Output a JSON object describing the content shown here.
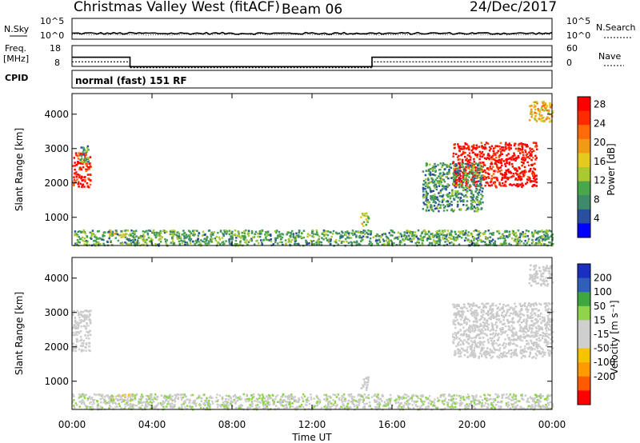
{
  "header": {
    "station": "Christmas Valley West (fitACF)",
    "beam": "Beam 06",
    "date": "24/Dec/2017"
  },
  "nsky_panel": {
    "left_label": "N.Sky",
    "right_label": "N.Search",
    "left_ticks": [
      "10^5",
      "10^0"
    ],
    "right_ticks": [
      "10^5",
      "10^0"
    ]
  },
  "freq_panel": {
    "left_label_1": "Freq.",
    "left_label_2": "[MHz]",
    "right_label": "Nave",
    "left_ticks": [
      "18",
      "8"
    ],
    "right_ticks": [
      "60",
      "0"
    ],
    "freq_steps": [
      [
        0,
        12.4
      ],
      [
        2.9,
        7.9
      ],
      [
        15,
        12.4
      ],
      [
        24,
        12.4
      ]
    ],
    "nave_steps": [
      [
        0,
        10.2
      ],
      [
        2.9,
        7.4
      ],
      [
        15,
        10.2
      ],
      [
        24,
        10.2
      ]
    ]
  },
  "cpid_panel": {
    "label": "CPID",
    "text": "normal (fast) 151 RF"
  },
  "colors": {
    "power_scale": [
      "#0000ff",
      "#2a4fa0",
      "#3f8a6a",
      "#4aa64a",
      "#aac832",
      "#e6c91e",
      "#f09a16",
      "#ff6a0a",
      "#ff2a00",
      "#ff0000"
    ],
    "velocity_scale": [
      "#ff0000",
      "#ff5a00",
      "#ff9a00",
      "#f5c400",
      "#cfcfcf",
      "#cfcfcf",
      "#8fd44a",
      "#3fa63f",
      "#2f5fb8",
      "#1a2fbf"
    ],
    "gray_scatter": "#c8c8c8"
  },
  "chart_data": [
    {
      "type": "heatmap",
      "title": "Power",
      "x_ticks": [
        "00:00",
        "04:00",
        "08:00",
        "12:00",
        "16:00",
        "20:00",
        "00:00"
      ],
      "xlim": [
        0,
        24
      ],
      "ylabel": "Slant Range [km]",
      "ylim": [
        180,
        4600
      ],
      "y_ticks": [
        "1000",
        "2000",
        "3000",
        "4000"
      ],
      "colorbar_label": "Power [dB]",
      "colorbar_ticks": [
        "4",
        "8",
        "12",
        "16",
        "20",
        "24",
        "28"
      ],
      "clim": [
        0,
        30
      ],
      "regions": [
        {
          "t0": 0.0,
          "t1": 0.9,
          "r0": 1900,
          "r1": 2900,
          "value": 27
        },
        {
          "t0": 0.3,
          "t1": 0.8,
          "r0": 2600,
          "r1": 3100,
          "value": 10
        },
        {
          "t0": 1.8,
          "t1": 3.0,
          "r0": 450,
          "r1": 650,
          "value": 17
        },
        {
          "t0": 14.4,
          "t1": 14.8,
          "r0": 750,
          "r1": 1150,
          "value": 14
        },
        {
          "t0": 19.0,
          "t1": 23.2,
          "r0": 1900,
          "r1": 3200,
          "value": 28
        },
        {
          "t0": 17.5,
          "t1": 20.5,
          "r0": 1200,
          "r1": 2600,
          "value": 9
        },
        {
          "t0": 22.8,
          "t1": 24.0,
          "r0": 3800,
          "r1": 4400,
          "value": 18
        },
        {
          "t0": 0.0,
          "t1": 24.0,
          "r0": 200,
          "r1": 650,
          "value": 10
        }
      ]
    },
    {
      "type": "heatmap",
      "title": "Velocity",
      "x_ticks": [
        "00:00",
        "04:00",
        "08:00",
        "12:00",
        "16:00",
        "20:00",
        "00:00"
      ],
      "xlim": [
        0,
        24
      ],
      "xlabel": "Time UT",
      "ylabel": "Slant Range [km]",
      "ylim": [
        180,
        4600
      ],
      "y_ticks": [
        "1000",
        "2000",
        "3000",
        "4000"
      ],
      "colorbar_label": "Velocity [m s⁻¹]",
      "colorbar_ticks": [
        "200",
        "100",
        "50",
        "15",
        "-15",
        "-50",
        "-100",
        "-200"
      ],
      "clim": [
        -250,
        250
      ],
      "regions": [
        {
          "t0": 0.0,
          "t1": 0.9,
          "r0": 1900,
          "r1": 3100,
          "value": 0
        },
        {
          "t0": 1.8,
          "t1": 3.0,
          "r0": 450,
          "r1": 650,
          "value": -60
        },
        {
          "t0": 14.4,
          "t1": 14.8,
          "r0": 750,
          "r1": 1150,
          "value": 0
        },
        {
          "t0": 19.0,
          "t1": 24.0,
          "r0": 1700,
          "r1": 3300,
          "value": 0
        },
        {
          "t0": 22.8,
          "t1": 24.0,
          "r0": 3800,
          "r1": 4400,
          "value": 0
        },
        {
          "t0": 0.0,
          "t1": 24.0,
          "r0": 200,
          "r1": 650,
          "value": 30
        }
      ]
    }
  ]
}
